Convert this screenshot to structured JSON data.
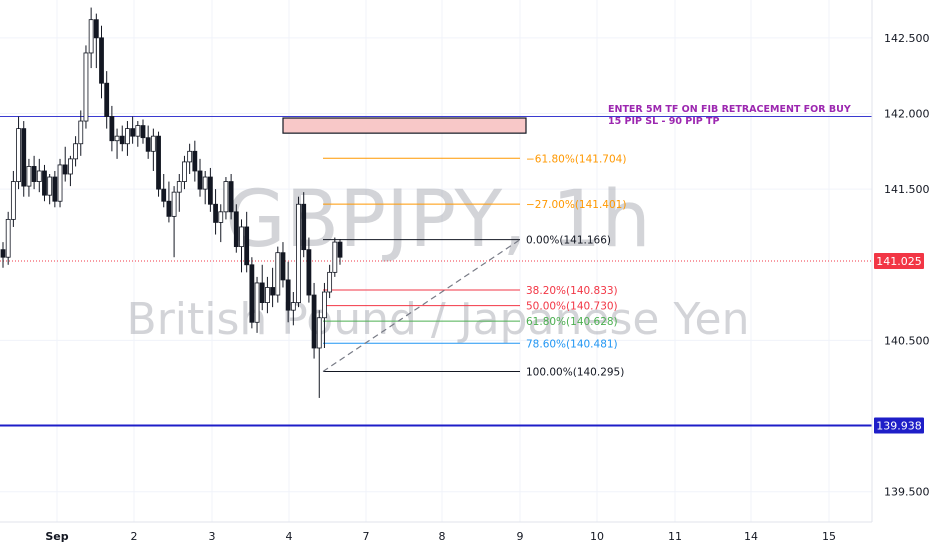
{
  "chart_data": {
    "type": "candlestick",
    "symbol_watermark": "GBPJPY, 1h",
    "description_watermark": "British Pound / Japanese Yen",
    "ylim": [
      139.3,
      142.75
    ],
    "y_ticks": [
      "142.500",
      "142.000",
      "141.500",
      "140.500",
      "139.500"
    ],
    "y_tick_values": [
      142.5,
      142.0,
      141.5,
      140.5,
      139.5
    ],
    "x_ticks": [
      "Sep",
      "2",
      "3",
      "4",
      "7",
      "8",
      "9",
      "10",
      "11",
      "14",
      "15"
    ],
    "current_price": {
      "value": 141.025,
      "label": "141.025",
      "color": "#f23645"
    },
    "horizontal_line": {
      "value": 139.938,
      "label": "139.938",
      "color": "#1e1ec8"
    },
    "resistance_line": {
      "value": 141.98,
      "color": "#3a3ad0"
    },
    "zone": {
      "top": 141.97,
      "bottom": 141.87,
      "color": "#f8c8c8"
    },
    "fib_levels": [
      {
        "ratio": -0.618,
        "label": "−61.80%(141.704)",
        "value": 141.704,
        "color": "#ff9800"
      },
      {
        "ratio": -0.27,
        "label": "−27.00%(141.401)",
        "value": 141.401,
        "color": "#ff9800"
      },
      {
        "ratio": 0.0,
        "label": "0.00%(141.166)",
        "value": 141.166,
        "color": "#131722"
      },
      {
        "ratio": 0.382,
        "label": "38.20%(140.833)",
        "value": 140.833,
        "color": "#f23645"
      },
      {
        "ratio": 0.5,
        "label": "50.00%(140.730)",
        "value": 140.73,
        "color": "#f23645"
      },
      {
        "ratio": 0.618,
        "label": "61.80%(140.628)",
        "value": 140.628,
        "color": "#4caf50"
      },
      {
        "ratio": 0.786,
        "label": "78.60%(140.481)",
        "value": 140.481,
        "color": "#2196f3"
      },
      {
        "ratio": 1.0,
        "label": "100.00%(140.295)",
        "value": 140.295,
        "color": "#131722"
      }
    ],
    "trendline": {
      "from": 140.295,
      "to": 141.166
    },
    "note_lines": [
      "ENTER 5M TF ON FIB RETRACEMENT FOR BUY",
      "15 PIP SL - 90 PIP TP"
    ],
    "candles": [
      [
        141.1,
        141.15,
        140.98,
        141.05
      ],
      [
        141.05,
        141.35,
        141.0,
        141.3
      ],
      [
        141.3,
        141.62,
        141.25,
        141.55
      ],
      [
        141.55,
        141.98,
        141.5,
        141.9
      ],
      [
        141.9,
        141.95,
        141.45,
        141.52
      ],
      [
        141.52,
        141.7,
        141.45,
        141.65
      ],
      [
        141.65,
        141.72,
        141.5,
        141.55
      ],
      [
        141.55,
        141.7,
        141.48,
        141.62
      ],
      [
        141.62,
        141.66,
        141.42,
        141.46
      ],
      [
        141.46,
        141.6,
        141.4,
        141.58
      ],
      [
        141.58,
        141.62,
        141.38,
        141.42
      ],
      [
        141.42,
        141.7,
        141.38,
        141.66
      ],
      [
        141.66,
        141.78,
        141.55,
        141.6
      ],
      [
        141.6,
        141.72,
        141.52,
        141.7
      ],
      [
        141.7,
        141.85,
        141.65,
        141.8
      ],
      [
        141.8,
        142.02,
        141.72,
        141.95
      ],
      [
        141.95,
        142.45,
        141.9,
        142.4
      ],
      [
        142.4,
        142.7,
        142.3,
        142.62
      ],
      [
        142.62,
        142.66,
        142.3,
        142.5
      ],
      [
        142.5,
        142.58,
        142.1,
        142.2
      ],
      [
        142.2,
        142.28,
        141.9,
        141.98
      ],
      [
        141.98,
        142.05,
        141.75,
        141.82
      ],
      [
        141.82,
        141.9,
        141.7,
        141.85
      ],
      [
        141.85,
        141.92,
        141.75,
        141.8
      ],
      [
        141.8,
        141.95,
        141.72,
        141.9
      ],
      [
        141.9,
        141.98,
        141.8,
        141.85
      ],
      [
        141.85,
        141.95,
        141.78,
        141.92
      ],
      [
        141.92,
        141.96,
        141.8,
        141.84
      ],
      [
        141.84,
        141.92,
        141.7,
        141.75
      ],
      [
        141.75,
        141.9,
        141.62,
        141.85
      ],
      [
        141.85,
        141.88,
        141.45,
        141.5
      ],
      [
        141.5,
        141.6,
        141.38,
        141.42
      ],
      [
        141.42,
        141.55,
        141.28,
        141.32
      ],
      [
        141.32,
        141.52,
        141.05,
        141.48
      ],
      [
        141.48,
        141.6,
        141.35,
        141.55
      ],
      [
        141.55,
        141.72,
        141.5,
        141.68
      ],
      [
        141.68,
        141.8,
        141.6,
        141.75
      ],
      [
        141.75,
        141.82,
        141.55,
        141.62
      ],
      [
        141.62,
        141.7,
        141.45,
        141.5
      ],
      [
        141.5,
        141.62,
        141.4,
        141.58
      ],
      [
        141.58,
        141.64,
        141.35,
        141.4
      ],
      [
        141.4,
        141.5,
        141.2,
        141.28
      ],
      [
        141.28,
        141.4,
        141.15,
        141.35
      ],
      [
        141.35,
        141.58,
        141.3,
        141.55
      ],
      [
        141.55,
        141.6,
        141.3,
        141.35
      ],
      [
        141.35,
        141.4,
        141.08,
        141.12
      ],
      [
        141.12,
        141.3,
        140.95,
        141.25
      ],
      [
        141.25,
        141.35,
        140.95,
        141.0
      ],
      [
        141.0,
        141.05,
        140.58,
        140.62
      ],
      [
        140.62,
        140.92,
        140.55,
        140.88
      ],
      [
        140.88,
        141.0,
        140.7,
        140.75
      ],
      [
        140.75,
        140.92,
        140.68,
        140.85
      ],
      [
        140.85,
        140.98,
        140.72,
        140.8
      ],
      [
        140.8,
        141.12,
        140.75,
        141.08
      ],
      [
        141.08,
        141.15,
        140.85,
        140.9
      ],
      [
        140.9,
        141.02,
        140.62,
        140.7
      ],
      [
        140.7,
        140.82,
        140.6,
        140.75
      ],
      [
        140.75,
        141.45,
        140.72,
        141.4
      ],
      [
        141.4,
        141.48,
        141.05,
        141.1
      ],
      [
        141.1,
        141.18,
        140.75,
        140.8
      ],
      [
        140.8,
        140.88,
        140.38,
        140.45
      ],
      [
        140.45,
        140.7,
        140.12,
        140.65
      ],
      [
        140.65,
        140.88,
        140.45,
        140.82
      ],
      [
        140.82,
        141.0,
        140.78,
        140.95
      ],
      [
        140.95,
        141.18,
        140.92,
        141.15
      ],
      [
        141.15,
        141.17,
        141.0,
        141.05
      ]
    ]
  }
}
